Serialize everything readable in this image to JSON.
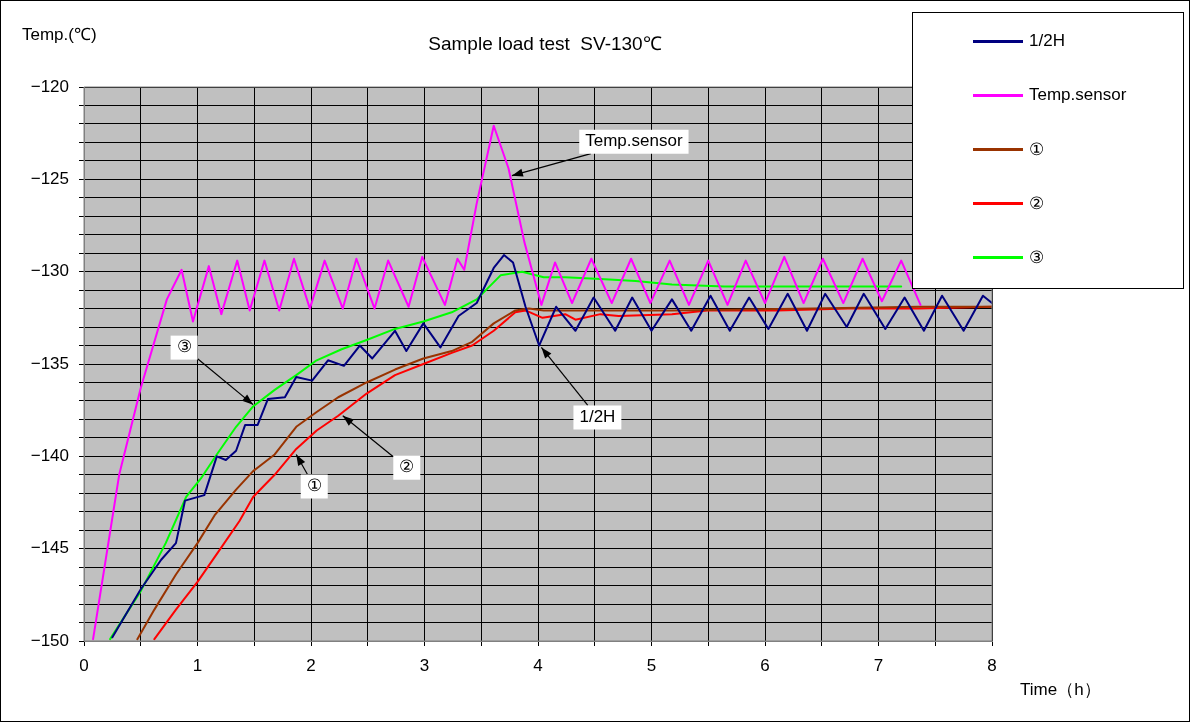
{
  "chart_data": {
    "type": "line",
    "title": "Sample load test  SV-130℃",
    "xlabel": "Time（h）",
    "ylabel": "Temp.(℃)",
    "xlim": [
      0,
      8
    ],
    "ylim": [
      -150,
      -120
    ],
    "xticks": [
      0,
      {
        "value": 0.5,
        "label": null
      },
      1,
      {
        "value": 1.5,
        "label": null
      },
      2,
      {
        "value": 2.5,
        "label": null
      },
      3,
      {
        "value": 3.5,
        "label": null
      },
      4,
      {
        "value": 4.5,
        "label": null
      },
      5,
      {
        "value": 5.5,
        "label": null
      },
      6,
      {
        "value": 6.5,
        "label": null
      },
      7,
      {
        "value": 7.5,
        "label": null
      },
      8
    ],
    "yticks": [
      -150,
      {
        "value": -149,
        "label": null
      },
      {
        "value": -148,
        "label": null
      },
      {
        "value": -147,
        "label": null
      },
      {
        "value": -146,
        "label": null
      },
      -145,
      {
        "value": -144,
        "label": null
      },
      {
        "value": -143,
        "label": null
      },
      {
        "value": -142,
        "label": null
      },
      {
        "value": -141,
        "label": null
      },
      -140,
      {
        "value": -139,
        "label": null
      },
      {
        "value": -138,
        "label": null
      },
      {
        "value": -137,
        "label": null
      },
      {
        "value": -136,
        "label": null
      },
      -135,
      {
        "value": -134,
        "label": null
      },
      {
        "value": -133,
        "label": null
      },
      {
        "value": -132,
        "label": null
      },
      {
        "value": -131,
        "label": null
      },
      -130,
      {
        "value": -129,
        "label": null
      },
      {
        "value": -128,
        "label": null
      },
      {
        "value": -127,
        "label": null
      },
      {
        "value": -126,
        "label": null
      },
      -125,
      {
        "value": -124,
        "label": null
      },
      {
        "value": -123,
        "label": null
      },
      {
        "value": -122,
        "label": null
      },
      {
        "value": -121,
        "label": null
      },
      -120
    ],
    "grid": true,
    "legend": "top right",
    "marker": "none",
    "line_style": "solid",
    "series": [
      {
        "name": "1/2H",
        "color": "#000080",
        "x": [
          0.25,
          0.5,
          0.68,
          0.81,
          0.89,
          1.06,
          1.17,
          1.25,
          1.34,
          1.42,
          1.53,
          1.62,
          1.77,
          1.87,
          2.01,
          2.15,
          2.29,
          2.43,
          2.54,
          2.74,
          2.84,
          2.99,
          3.14,
          3.3,
          3.46,
          3.61,
          3.7,
          3.78,
          3.89,
          4.01,
          4.16,
          4.33,
          4.49,
          4.68,
          4.83,
          5.0,
          5.18,
          5.35,
          5.52,
          5.69,
          5.86,
          6.03,
          6.2,
          6.37,
          6.53,
          6.72,
          6.87,
          7.06,
          7.23,
          7.4,
          7.56,
          7.75,
          7.92,
          8.0
        ],
        "values": [
          -149.8,
          -147.2,
          -145.6,
          -144.7,
          -142.4,
          -142.1,
          -140.0,
          -140.2,
          -139.7,
          -138.3,
          -138.3,
          -136.9,
          -136.8,
          -135.7,
          -135.9,
          -134.8,
          -135.1,
          -134.0,
          -134.7,
          -133.2,
          -134.3,
          -132.8,
          -134.1,
          -132.4,
          -131.7,
          -129.8,
          -129.1,
          -129.5,
          -131.9,
          -134.0,
          -131.9,
          -133.2,
          -131.4,
          -133.2,
          -131.4,
          -133.2,
          -131.5,
          -133.2,
          -131.3,
          -133.2,
          -131.4,
          -133.1,
          -131.2,
          -133.2,
          -131.2,
          -133.0,
          -131.2,
          -133.1,
          -131.4,
          -133.2,
          -131.3,
          -133.2,
          -131.3,
          -131.7
        ]
      },
      {
        "name": "Temp.sensor",
        "color": "#ff00ff",
        "x": [
          0.08,
          0.31,
          0.5,
          0.73,
          0.86,
          0.96,
          1.1,
          1.21,
          1.35,
          1.46,
          1.59,
          1.72,
          1.85,
          1.99,
          2.12,
          2.28,
          2.4,
          2.56,
          2.68,
          2.86,
          2.98,
          3.18,
          3.29,
          3.35,
          3.46,
          3.61,
          3.74,
          3.88,
          4.03,
          4.15,
          4.3,
          4.47,
          4.65,
          4.82,
          4.99,
          5.16,
          5.33,
          5.5,
          5.67,
          5.83,
          6.0,
          6.17,
          6.34,
          6.51,
          6.69,
          6.86,
          7.03,
          7.2,
          7.37
        ],
        "values": [
          -149.9,
          -141.0,
          -136.3,
          -131.5,
          -129.9,
          -132.7,
          -129.7,
          -132.3,
          -129.4,
          -132.1,
          -129.4,
          -132.1,
          -129.3,
          -132.0,
          -129.4,
          -132.0,
          -129.3,
          -132.0,
          -129.4,
          -131.9,
          -129.2,
          -131.8,
          -129.3,
          -129.9,
          -126.3,
          -122.1,
          -124.4,
          -128.4,
          -131.8,
          -129.5,
          -131.7,
          -129.3,
          -131.7,
          -129.3,
          -131.7,
          -129.4,
          -131.8,
          -129.4,
          -131.8,
          -129.4,
          -131.7,
          -129.2,
          -131.7,
          -129.3,
          -131.7,
          -129.3,
          -131.6,
          -129.4,
          -131.8
        ]
      },
      {
        "name": "①",
        "color": "#993300",
        "x": [
          0.47,
          0.62,
          0.81,
          1.0,
          1.15,
          1.34,
          1.49,
          1.68,
          1.87,
          2.05,
          2.24,
          2.49,
          2.74,
          2.99,
          3.24,
          3.42,
          3.61,
          3.8,
          3.92,
          4.05,
          4.24,
          5.18,
          6.42,
          7.35,
          8.0
        ],
        "values": [
          -149.9,
          -148.3,
          -146.4,
          -144.7,
          -143.2,
          -141.8,
          -140.8,
          -139.9,
          -138.4,
          -137.6,
          -136.8,
          -136.0,
          -135.3,
          -134.7,
          -134.3,
          -133.8,
          -132.8,
          -132.1,
          -132.0,
          -132.1,
          -132.1,
          -132.1,
          -132.0,
          -131.9,
          -131.9
        ]
      },
      {
        "name": "②",
        "color": "#ff0000",
        "x": [
          0.62,
          0.81,
          1.0,
          1.18,
          1.37,
          1.49,
          1.68,
          1.87,
          2.05,
          2.24,
          2.49,
          2.74,
          2.99,
          3.24,
          3.42,
          3.61,
          3.8,
          3.89,
          4.04,
          4.24,
          4.33,
          4.55,
          4.71,
          5.18,
          5.49,
          6.11,
          6.73,
          7.35,
          8.0
        ],
        "values": [
          -149.9,
          -148.3,
          -146.8,
          -145.2,
          -143.5,
          -142.2,
          -141.0,
          -139.6,
          -138.6,
          -137.8,
          -136.6,
          -135.6,
          -135.0,
          -134.4,
          -134.0,
          -133.2,
          -132.2,
          -132.1,
          -132.5,
          -132.3,
          -132.6,
          -132.3,
          -132.4,
          -132.3,
          -132.1,
          -132.1,
          -132.0,
          -132.0,
          -131.9
        ]
      },
      {
        "name": "③",
        "color": "#00ff00",
        "x": [
          0.23,
          0.5,
          0.72,
          0.9,
          1.03,
          1.17,
          1.34,
          1.49,
          1.68,
          1.87,
          2.05,
          2.27,
          2.49,
          2.74,
          2.99,
          3.24,
          3.46,
          3.67,
          3.86,
          4.05,
          4.24,
          4.55,
          4.86,
          5.18,
          5.64,
          6.11,
          6.73,
          7.2
        ],
        "values": [
          -149.9,
          -147.3,
          -144.7,
          -142.2,
          -141.2,
          -139.9,
          -138.4,
          -137.3,
          -136.4,
          -135.6,
          -134.8,
          -134.2,
          -133.7,
          -133.1,
          -132.7,
          -132.2,
          -131.5,
          -130.2,
          -130.0,
          -130.3,
          -130.3,
          -130.4,
          -130.5,
          -130.7,
          -130.8,
          -130.8,
          -130.8,
          -130.8
        ]
      }
    ],
    "annotations": [
      {
        "text": "Temp.sensor",
        "x": 3.77,
        "y": -124.8
      },
      {
        "text": "1/2H",
        "x": 4.03,
        "y": -134.1
      },
      {
        "text": "③",
        "x": 1.49,
        "y": -137.2
      },
      {
        "text": "②",
        "x": 2.28,
        "y": -137.8
      },
      {
        "text": "①",
        "x": 1.87,
        "y": -139.9
      }
    ]
  }
}
